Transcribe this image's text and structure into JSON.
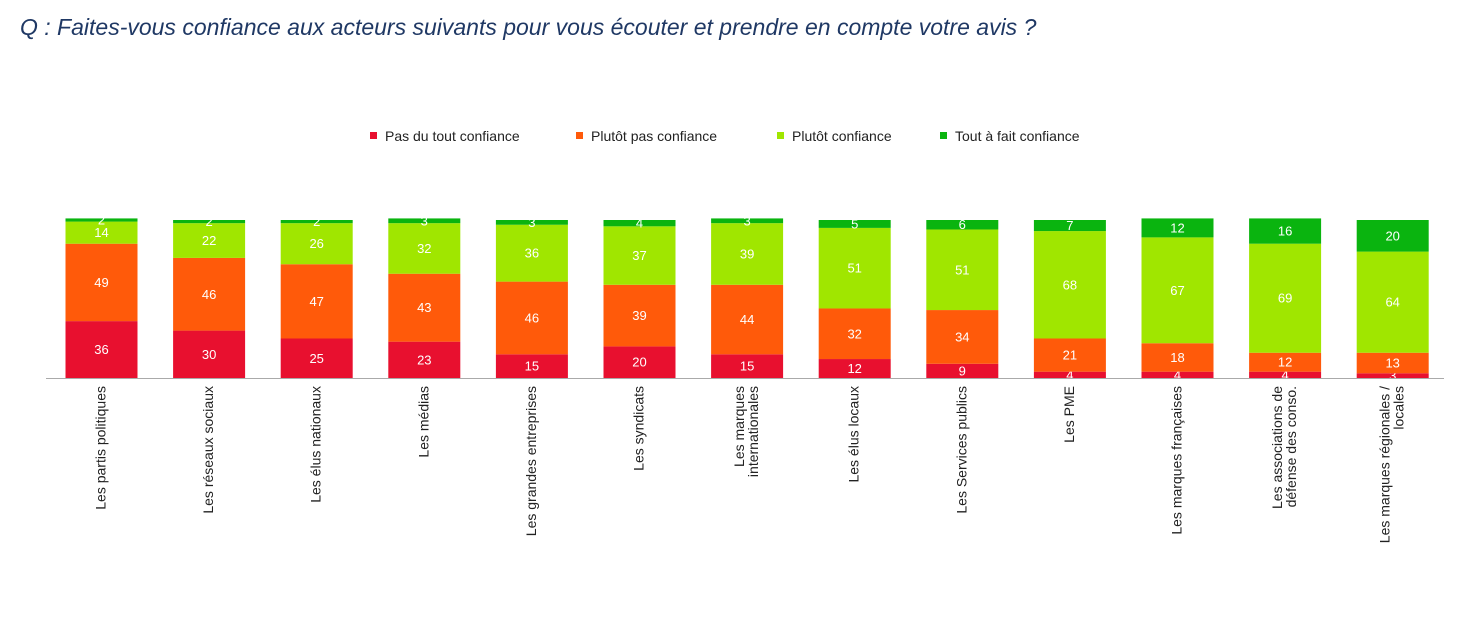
{
  "question": "Q : Faites-vous confiance aux acteurs suivants pour vous écouter et prendre en compte votre avis ?",
  "chart_data": {
    "type": "bar",
    "stacked": true,
    "percent": true,
    "title": "",
    "xlabel": "",
    "ylabel": "",
    "ylim": [
      0,
      100
    ],
    "grid": false,
    "legend_position": "top",
    "categories": [
      [
        "Les partis politiques"
      ],
      [
        "Les réseaux sociaux"
      ],
      [
        "Les élus nationaux"
      ],
      [
        "Les médias"
      ],
      [
        "Les grandes entreprises"
      ],
      [
        "Les syndicats"
      ],
      [
        "Les marques",
        "internationales"
      ],
      [
        "Les élus locaux"
      ],
      [
        "Les Services publics"
      ],
      [
        "Les PME"
      ],
      [
        "Les marques françaises"
      ],
      [
        "Les associations de",
        "défense des conso."
      ],
      [
        "Les marques régionales /",
        "locales"
      ]
    ],
    "series": [
      {
        "name": "Pas du tout confiance",
        "color": "#e8102f",
        "values": [
          36,
          30,
          25,
          23,
          15,
          20,
          15,
          12,
          9,
          4,
          4,
          4,
          3
        ]
      },
      {
        "name": "Plutôt pas confiance",
        "color": "#ff5a0a",
        "values": [
          49,
          46,
          47,
          43,
          46,
          39,
          44,
          32,
          34,
          21,
          18,
          12,
          13
        ]
      },
      {
        "name": "Plutôt confiance",
        "color": "#a0e600",
        "values": [
          14,
          22,
          26,
          32,
          36,
          37,
          39,
          51,
          51,
          68,
          67,
          69,
          64
        ]
      },
      {
        "name": "Tout à fait confiance",
        "color": "#0ab40f",
        "values": [
          2,
          2,
          2,
          3,
          3,
          4,
          3,
          5,
          6,
          7,
          12,
          16,
          20
        ]
      }
    ]
  }
}
